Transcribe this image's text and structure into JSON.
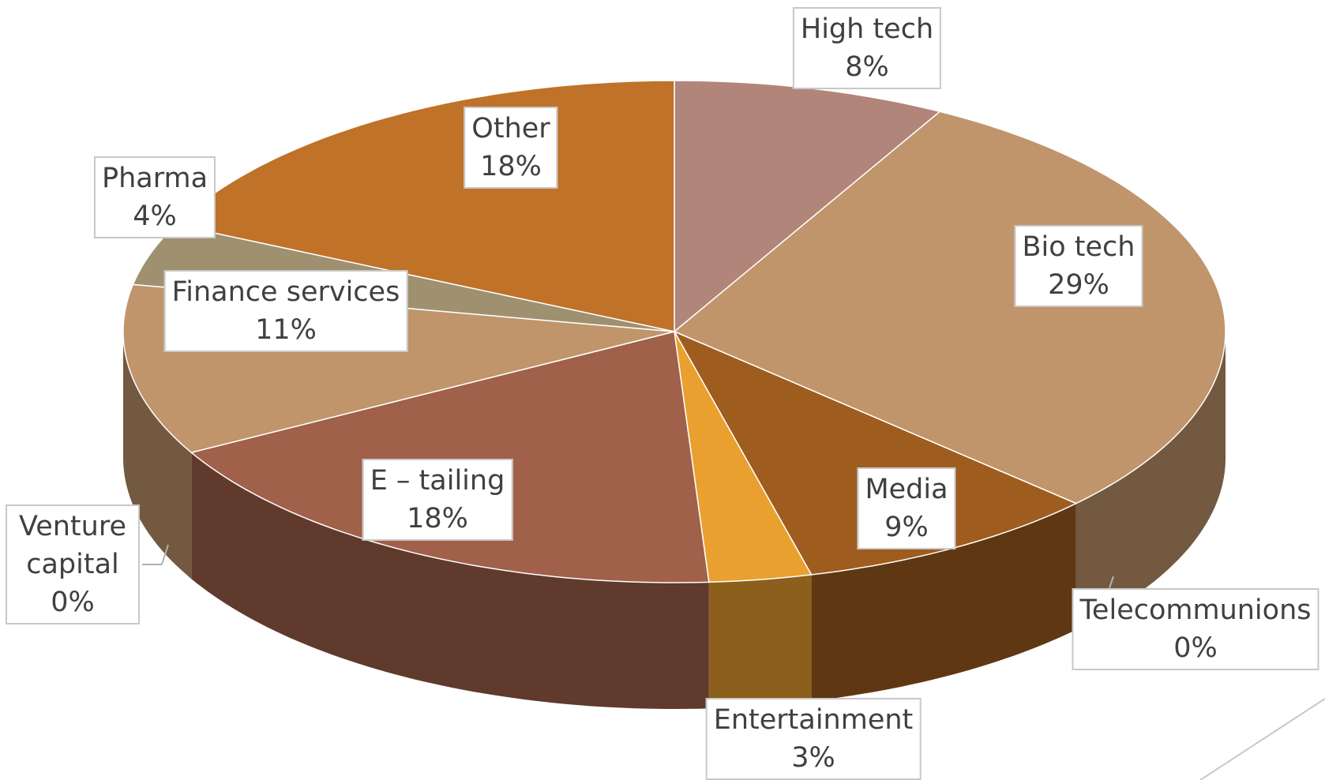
{
  "chart_data": {
    "type": "pie3d",
    "categories": [
      "High tech",
      "Bio tech",
      "Telecommunions",
      "Media",
      "Entertainment",
      "E – tailing",
      "Venture capital",
      "Finance services",
      "Pharma",
      "Other"
    ],
    "values": [
      8,
      29,
      0,
      9,
      3,
      18,
      0,
      11,
      4,
      18
    ],
    "value_labels": [
      "8%",
      "29%",
      "0%",
      "9%",
      "3%",
      "18%",
      "0%",
      "11%",
      "4%",
      "18%"
    ],
    "colors": [
      "#b2857a",
      "#c0956b",
      "#5a4630",
      "#9e5c1e",
      "#e9a02e",
      "#a0604a",
      "#b08050",
      "#c0956b",
      "#9f9070",
      "#bf7228"
    ]
  }
}
